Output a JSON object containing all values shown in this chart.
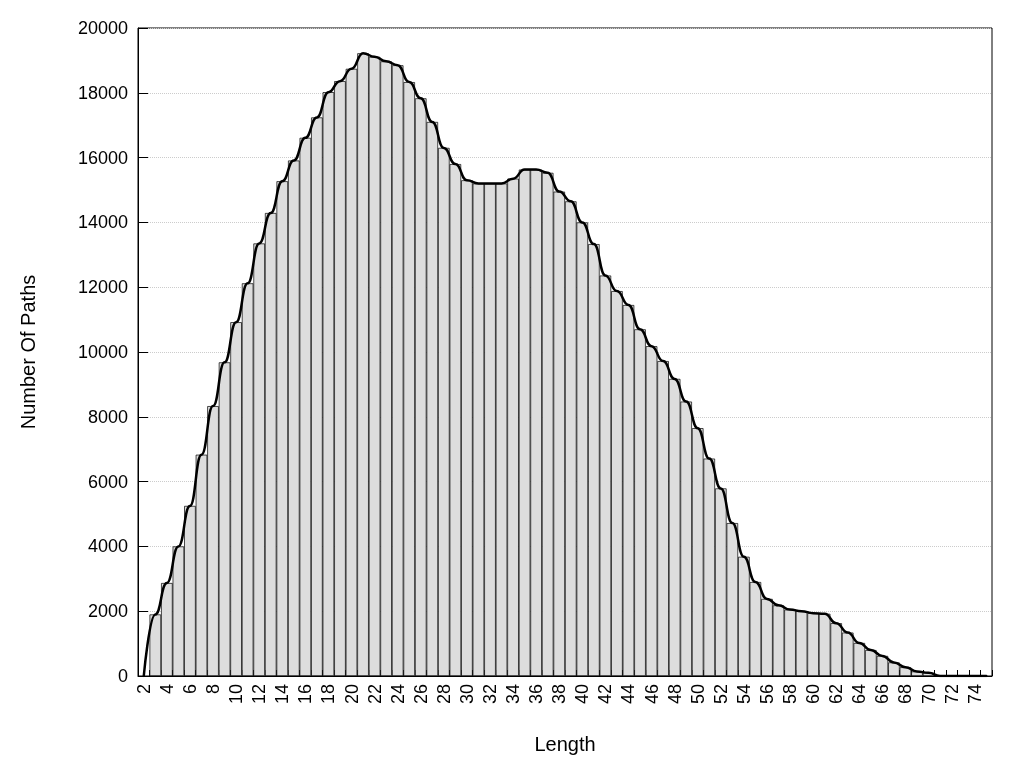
{
  "chart_data": {
    "type": "bar",
    "xlabel": "Length",
    "ylabel": "Number Of Paths",
    "categories": [
      "2",
      null,
      "4",
      null,
      "6",
      null,
      "8",
      null,
      "10",
      null,
      "12",
      null,
      "14",
      null,
      "16",
      null,
      "18",
      null,
      "20",
      null,
      "22",
      null,
      "24",
      null,
      "26",
      null,
      "28",
      null,
      "30",
      null,
      "32",
      null,
      "34",
      null,
      "36",
      null,
      "38",
      null,
      "40",
      null,
      "42",
      null,
      "44",
      null,
      "46",
      null,
      "48",
      null,
      "50",
      null,
      "52",
      null,
      "54",
      null,
      "56",
      null,
      "58",
      null,
      "60",
      null,
      "62",
      null,
      "64",
      null,
      "66",
      null,
      "68",
      null,
      "70",
      null,
      "72",
      null,
      "74",
      null
    ],
    "series": [
      {
        "color": "#dddddd",
        "values": [
          0,
          1900,
          2870,
          4000,
          5250,
          6830,
          8330,
          9680,
          10920,
          12120,
          13350,
          14290,
          15270,
          15910,
          16610,
          17240,
          18020,
          18360,
          18740,
          19220,
          19110,
          18970,
          18850,
          18330,
          17830,
          17100,
          16300,
          15800,
          15300,
          15200,
          15200,
          15200,
          15350,
          15630,
          15630,
          15530,
          14950,
          14650,
          14000,
          13330,
          12360,
          11880,
          11450,
          10700,
          10180,
          9720,
          9170,
          8470,
          7650,
          6710,
          5790,
          4720,
          3680,
          2900,
          2380,
          2180,
          2050,
          2000,
          1940,
          1920,
          1630,
          1340,
          1020,
          800,
          620,
          420,
          270,
          140,
          100,
          0,
          0,
          0,
          0,
          0
        ]
      },
      {
        "type": "line",
        "color": "#000000",
        "values": [
          0,
          1900,
          2870,
          4000,
          5250,
          6830,
          8330,
          9680,
          10920,
          12120,
          13350,
          14290,
          15270,
          15910,
          16610,
          17240,
          18020,
          18360,
          18740,
          19220,
          19110,
          18970,
          18850,
          18330,
          17830,
          17100,
          16300,
          15800,
          15300,
          15200,
          15200,
          15200,
          15350,
          15630,
          15630,
          15530,
          14950,
          14650,
          14000,
          13330,
          12360,
          11880,
          11450,
          10700,
          10180,
          9720,
          9170,
          8470,
          7650,
          6710,
          5790,
          4720,
          3680,
          2900,
          2380,
          2180,
          2050,
          2000,
          1940,
          1920,
          1630,
          1340,
          1020,
          800,
          620,
          420,
          270,
          140,
          100,
          0,
          0,
          0,
          0,
          0
        ]
      }
    ],
    "ylim": [
      0,
      20000
    ],
    "yticks": [
      0,
      2000,
      4000,
      6000,
      8000,
      10000,
      12000,
      14000,
      16000,
      18000,
      20000
    ],
    "grid": "y",
    "marker": "none"
  }
}
